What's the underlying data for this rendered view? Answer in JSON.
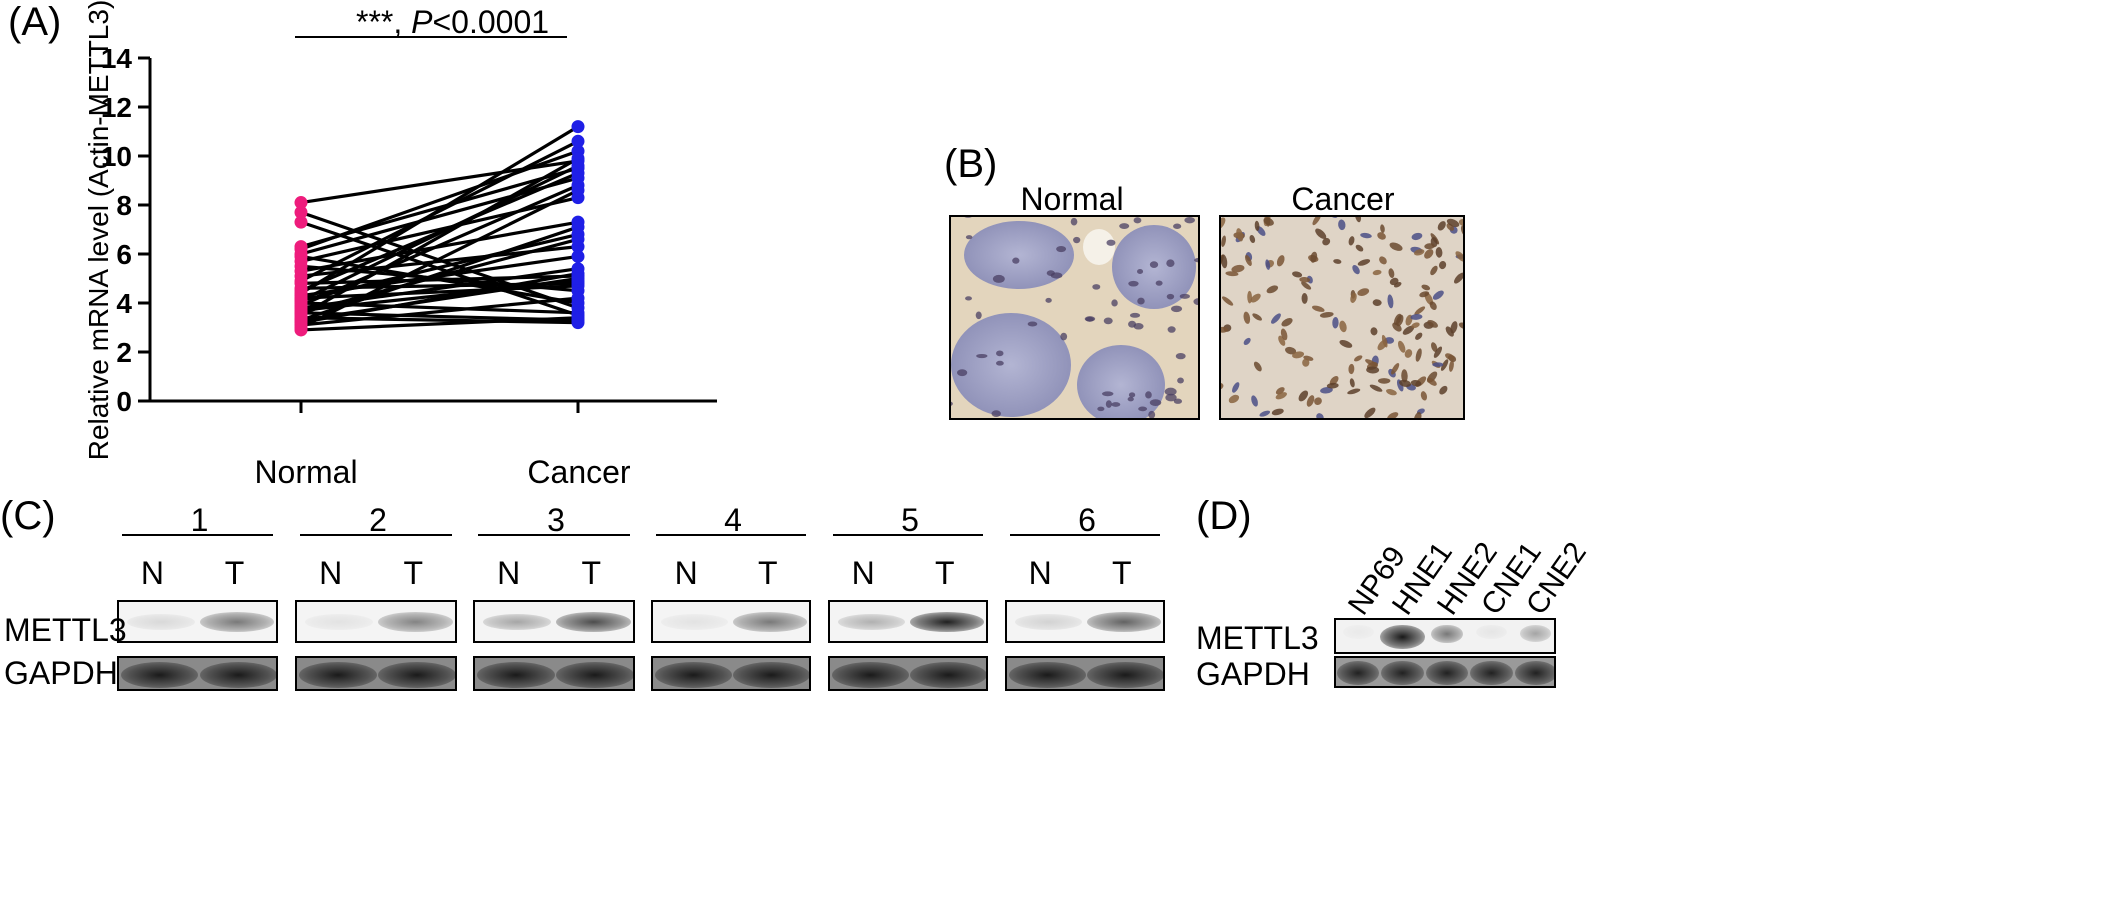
{
  "panels": {
    "a": {
      "label": "(A)",
      "significance": {
        "stars": "***",
        "comma": ", ",
        "p_symbol": "P",
        "p_rest": "<0.0001"
      }
    },
    "b": {
      "label": "(B)",
      "normal_label": "Normal",
      "cancer_label": "Cancer"
    },
    "c": {
      "label": "(C)",
      "pairs": [
        "1",
        "2",
        "3",
        "4",
        "5",
        "6"
      ],
      "lane_n": "N",
      "lane_t": "T",
      "row_labels": [
        "METTL3",
        "GAPDH"
      ],
      "mettl3_band_intensity": [
        [
          0.12,
          0.55
        ],
        [
          0.08,
          0.5
        ],
        [
          0.35,
          0.75
        ],
        [
          0.08,
          0.55
        ],
        [
          0.3,
          0.95
        ],
        [
          0.15,
          0.65
        ]
      ]
    },
    "d": {
      "label": "(D)",
      "lanes": [
        "NP69",
        "HNE1",
        "HNE2",
        "CNE1",
        "CNE2"
      ],
      "row_labels": [
        "METTL3",
        "GAPDH"
      ],
      "mettl3_band_intensity": [
        0.03,
        0.98,
        0.55,
        0.06,
        0.35
      ]
    }
  },
  "chart_data": {
    "type": "scatter",
    "title": "",
    "xlabel": "",
    "ylabel": "Relative mRNA level (Actin-METTL3)",
    "categories": [
      "Normal",
      "Cancer"
    ],
    "ylim": [
      0,
      14
    ],
    "yticks": [
      "0",
      "2",
      "4",
      "6",
      "8",
      "10",
      "12",
      "14"
    ],
    "grid": false,
    "series_colors": {
      "Normal": "#ee1c7c",
      "Cancer": "#1f1fe6"
    },
    "pairs": [
      [
        8.1,
        9.8
      ],
      [
        7.7,
        3.8
      ],
      [
        7.3,
        3.5
      ],
      [
        6.3,
        9.5
      ],
      [
        6.2,
        10.2
      ],
      [
        6.0,
        9.1
      ],
      [
        5.9,
        4.0
      ],
      [
        5.7,
        8.3
      ],
      [
        5.5,
        4.5
      ],
      [
        5.3,
        7.3
      ],
      [
        5.1,
        6.3
      ],
      [
        4.9,
        10.6
      ],
      [
        4.8,
        5.1
      ],
      [
        4.6,
        4.8
      ],
      [
        4.5,
        9.3
      ],
      [
        4.4,
        11.2
      ],
      [
        4.3,
        5.9
      ],
      [
        4.2,
        4.7
      ],
      [
        4.1,
        6.8
      ],
      [
        4.0,
        3.6
      ],
      [
        3.9,
        8.8
      ],
      [
        3.8,
        5.4
      ],
      [
        3.7,
        4.9
      ],
      [
        3.6,
        6.6
      ],
      [
        3.5,
        9.9
      ],
      [
        3.4,
        3.2
      ],
      [
        3.3,
        7.1
      ],
      [
        3.2,
        5.2
      ],
      [
        3.1,
        4.2
      ],
      [
        3.0,
        8.6
      ],
      [
        2.9,
        3.4
      ],
      [
        3.3,
        5.0
      ],
      [
        3.6,
        3.3
      ],
      [
        4.1,
        9.6
      ]
    ]
  }
}
